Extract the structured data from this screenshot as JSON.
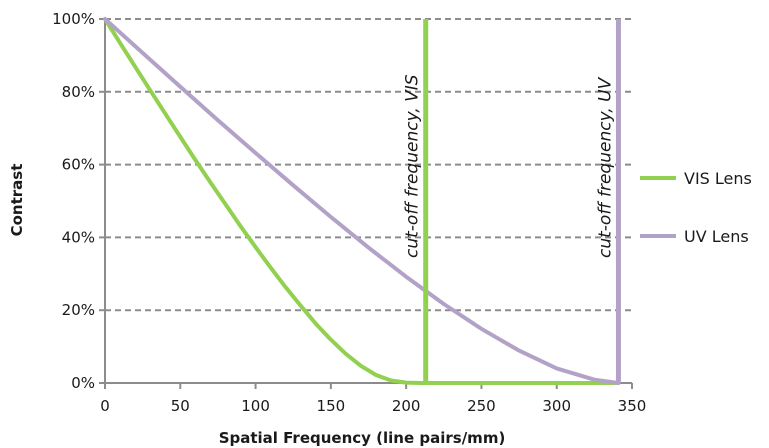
{
  "chart_data": {
    "type": "line",
    "xlabel": "Spatial Frequency (line pairs/mm)",
    "ylabel": "Contrast",
    "xlim": [
      0,
      350
    ],
    "ylim": [
      0,
      100
    ],
    "x_ticks": [
      0,
      50,
      100,
      150,
      200,
      250,
      300,
      350
    ],
    "y_ticks": [
      0,
      20,
      40,
      60,
      80,
      100
    ],
    "y_tick_labels": [
      "0%",
      "20%",
      "40%",
      "60%",
      "80%",
      "100%"
    ],
    "grid": "horizontal dashed",
    "legend_position": "right",
    "series": [
      {
        "name": "VIS Lens",
        "color": "#92d050",
        "x": [
          0,
          10,
          20,
          30,
          40,
          50,
          60,
          70,
          80,
          90,
          100,
          110,
          120,
          130,
          140,
          150,
          160,
          170,
          180,
          190,
          200,
          210,
          213,
          220,
          230,
          240,
          250,
          300,
          341
        ],
        "y": [
          100,
          93.4,
          86.9,
          80.4,
          74.0,
          67.6,
          61.3,
          55.1,
          49.1,
          43.1,
          37.3,
          31.7,
          26.3,
          21.2,
          16.3,
          11.9,
          8.0,
          4.7,
          2.2,
          0.7,
          0.1,
          0,
          0,
          0,
          0,
          0,
          0,
          0,
          0
        ]
      },
      {
        "name": "UV Lens",
        "color": "#b3a2c7",
        "x": [
          0,
          25,
          50,
          75,
          100,
          125,
          150,
          175,
          200,
          213,
          225,
          250,
          275,
          300,
          325,
          341
        ],
        "y": [
          100,
          90.7,
          81.4,
          72.2,
          63.2,
          54.3,
          45.6,
          37.2,
          29.2,
          25.3,
          21.7,
          14.9,
          8.9,
          4.0,
          0.9,
          0
        ]
      }
    ],
    "annotations": [
      {
        "label": "cut-off frequency,  VIS",
        "x": 213,
        "color": "#92d050"
      },
      {
        "label": "cut-off frequency,  UV",
        "x": 341,
        "color": "#b3a2c7"
      }
    ]
  }
}
